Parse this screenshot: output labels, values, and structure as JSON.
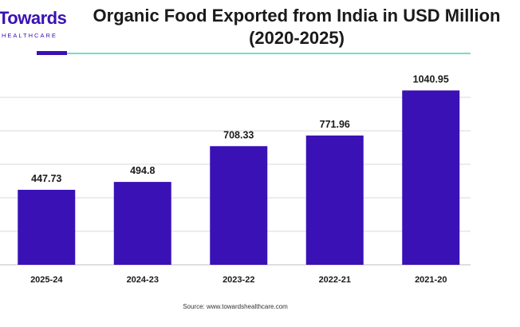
{
  "brand": {
    "logo_main": "Towards",
    "logo_sub": "HEALTHCARE"
  },
  "colors": {
    "bar": "#3a11b5",
    "accent_line": "#6fe0c8",
    "brand": "#3a11b5"
  },
  "chart_data": {
    "type": "bar",
    "title": "Organic Food Exported from India in USD Million (2020-2025)",
    "title_line1": "Organic Food Exported from India in USD Million",
    "title_line2": "(2020-2025)",
    "categories": [
      "2025-24",
      "2024-23",
      "2023-22",
      "2022-21",
      "2021-20"
    ],
    "values": [
      447.73,
      494.8,
      708.33,
      771.96,
      1040.95
    ],
    "value_labels": [
      "447.73",
      "494.8",
      "708.33",
      "771.96",
      "1040.95"
    ],
    "xlabel": "",
    "ylabel": "",
    "ylim": [
      0,
      1200
    ],
    "grid": true,
    "legend": "none"
  },
  "footer": {
    "source": "Source: www.towardshealthcare.com"
  }
}
